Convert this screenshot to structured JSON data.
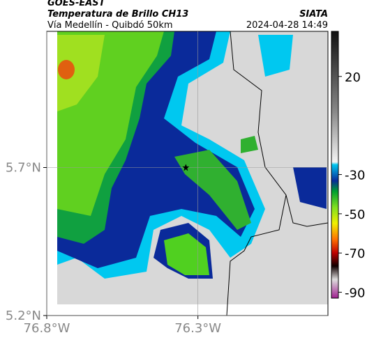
{
  "header": {
    "source": "GOES-EAST",
    "title": "Temperatura de Brillo CH13",
    "subtitle": "Vía Medellín - Quibdó 50km",
    "credit": "SIATA",
    "datetime": "2024-04-28 14:49"
  },
  "map": {
    "lonlim": [
      -76.8,
      -75.87
    ],
    "latlim": [
      5.2,
      6.16
    ],
    "xticks": [
      {
        "value": -76.8,
        "label": "76.8°W"
      },
      {
        "value": -76.3,
        "label": "76.3°W"
      }
    ],
    "yticks": [
      {
        "value": 5.7,
        "label": "5.7°N"
      },
      {
        "value": 5.2,
        "label": "5.2°N"
      }
    ],
    "marker": {
      "lon": -76.34,
      "lat": 5.7
    }
  },
  "colorbar": {
    "lim": [
      43,
      -93
    ],
    "ticks": [
      20,
      -30,
      -50,
      -70,
      -90
    ]
  }
}
